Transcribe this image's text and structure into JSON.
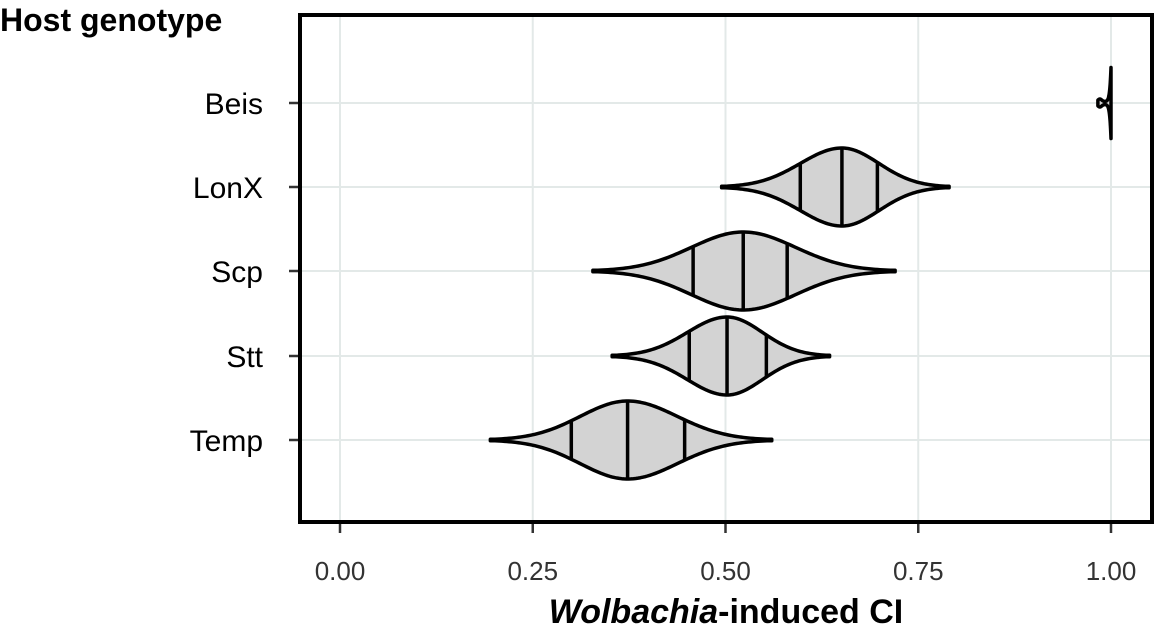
{
  "chart_data": {
    "type": "violin",
    "orientation": "horizontal",
    "ylabel": "Host genotype",
    "xlabel_italic": "Wolbachia",
    "xlabel_rest": "-induced CI",
    "xlim": [
      -0.05,
      1.03
    ],
    "xticks": [
      0.0,
      0.25,
      0.5,
      0.75,
      1.0
    ],
    "xtick_labels": [
      "0.00",
      "0.25",
      "0.50",
      "0.75",
      "1.00"
    ],
    "grid": true,
    "categories": [
      "Beis",
      "LonX",
      "Scp",
      "Stt",
      "Temp"
    ],
    "series": [
      {
        "category": "Beis",
        "min": 0.983,
        "max": 1.0,
        "quantiles": [],
        "median": 1.0
      },
      {
        "category": "LonX",
        "min": 0.495,
        "max": 0.79,
        "quantiles": [
          0.597,
          0.651,
          0.697
        ],
        "median": 0.651
      },
      {
        "category": "Scp",
        "min": 0.328,
        "max": 0.72,
        "quantiles": [
          0.458,
          0.523,
          0.58
        ],
        "median": 0.523
      },
      {
        "category": "Stt",
        "min": 0.353,
        "max": 0.635,
        "quantiles": [
          0.453,
          0.502,
          0.553
        ],
        "median": 0.502
      },
      {
        "category": "Temp",
        "min": 0.195,
        "max": 0.56,
        "quantiles": [
          0.3,
          0.373,
          0.447
        ],
        "median": 0.373
      }
    ],
    "fill_color": "#d3d3d3",
    "line_color": "#000000"
  }
}
